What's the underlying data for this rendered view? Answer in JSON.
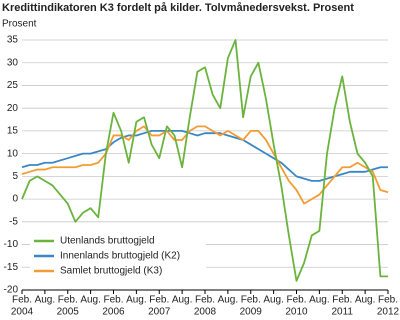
{
  "chart_data": {
    "type": "line",
    "title": "Kredittindikatoren K3 fordelt på kilder. Tolvmånedersvekst. Prosent",
    "y_label": "Prosent",
    "x": [
      "2004-02",
      "2004-04",
      "2004-06",
      "2004-08",
      "2004-10",
      "2004-12",
      "2005-02",
      "2005-04",
      "2005-06",
      "2005-08",
      "2005-10",
      "2005-12",
      "2006-02",
      "2006-04",
      "2006-06",
      "2006-08",
      "2006-10",
      "2006-12",
      "2007-02",
      "2007-04",
      "2007-06",
      "2007-08",
      "2007-10",
      "2007-12",
      "2008-02",
      "2008-04",
      "2008-06",
      "2008-08",
      "2008-10",
      "2008-12",
      "2009-02",
      "2009-04",
      "2009-06",
      "2009-08",
      "2009-10",
      "2009-12",
      "2010-02",
      "2010-04",
      "2010-06",
      "2010-08",
      "2010-10",
      "2010-12",
      "2011-02",
      "2011-04",
      "2011-06",
      "2011-08",
      "2011-10",
      "2011-12",
      "2012-02"
    ],
    "series": [
      {
        "name": "Utenlands bruttogjeld",
        "color": "#6ab43e",
        "values": [
          0,
          4,
          5,
          4,
          3,
          1,
          -1,
          -5,
          -3,
          -2,
          -4,
          10,
          19,
          15,
          8,
          17,
          18,
          12,
          9,
          16,
          14,
          7,
          18,
          28,
          29,
          23,
          20,
          31,
          35,
          18,
          27,
          30,
          22,
          12,
          3,
          -8,
          -18,
          -14,
          -8,
          -7,
          10,
          20,
          27,
          17,
          10,
          8,
          5,
          -17,
          -17
        ]
      },
      {
        "name": "Innenlands bruttogjeld (K2)",
        "color": "#3a87c4",
        "values": [
          7,
          7.5,
          7.5,
          8,
          8,
          8.5,
          9,
          9.5,
          10,
          10,
          10.5,
          11,
          12.5,
          13.5,
          14,
          14,
          14.5,
          15,
          15,
          15,
          15,
          15,
          14.5,
          14,
          14.5,
          14.5,
          14.5,
          14,
          13.5,
          13,
          12,
          11,
          10,
          9,
          8,
          6.5,
          5,
          4.5,
          4,
          4,
          4.5,
          5,
          5.5,
          6,
          6,
          6,
          6.5,
          7,
          7
        ]
      },
      {
        "name": "Samlet bruttogjeld (K3)",
        "color": "#f39c34",
        "values": [
          5.5,
          6,
          6.5,
          6.5,
          7,
          7,
          7,
          7,
          7.5,
          7.5,
          8,
          10,
          14,
          14,
          13,
          15,
          16,
          14,
          14,
          15,
          13,
          13,
          15,
          16,
          16,
          15,
          14,
          15,
          14,
          13,
          15,
          15,
          13,
          10,
          7,
          4,
          2,
          -1,
          0,
          1,
          3,
          5,
          7,
          7,
          8,
          7,
          6,
          2,
          1.5
        ]
      }
    ],
    "ylim": [
      -20,
      35
    ],
    "yticks": [
      -20,
      -15,
      -10,
      -5,
      0,
      5,
      10,
      15,
      20,
      25,
      30,
      35
    ],
    "xlim": [
      "2004-02",
      "2012-02"
    ],
    "xticks": [
      {
        "value": "2004-02",
        "label": "Feb.",
        "year": "2004"
      },
      {
        "value": "2004-08",
        "label": "Aug."
      },
      {
        "value": "2005-02",
        "label": "Feb.",
        "year": "2005"
      },
      {
        "value": "2005-08",
        "label": "Aug."
      },
      {
        "value": "2006-02",
        "label": "Feb.",
        "year": "2006"
      },
      {
        "value": "2006-08",
        "label": "Aug."
      },
      {
        "value": "2007-02",
        "label": "Feb.",
        "year": "2007"
      },
      {
        "value": "2007-08",
        "label": "Aug."
      },
      {
        "value": "2008-02",
        "label": "Feb.",
        "year": "2008"
      },
      {
        "value": "2008-08",
        "label": "Aug."
      },
      {
        "value": "2009-02",
        "label": "Feb.",
        "year": "2009"
      },
      {
        "value": "2009-08",
        "label": "Aug."
      },
      {
        "value": "2010-02",
        "label": "Feb.",
        "year": "2010"
      },
      {
        "value": "2010-08",
        "label": "Aug."
      },
      {
        "value": "2011-02",
        "label": "Feb.",
        "year": "2011"
      },
      {
        "value": "2011-08",
        "label": "Aug."
      },
      {
        "value": "2012-02",
        "label": "Feb.",
        "year": "2012"
      }
    ],
    "grid": true,
    "legend": "lower left"
  }
}
